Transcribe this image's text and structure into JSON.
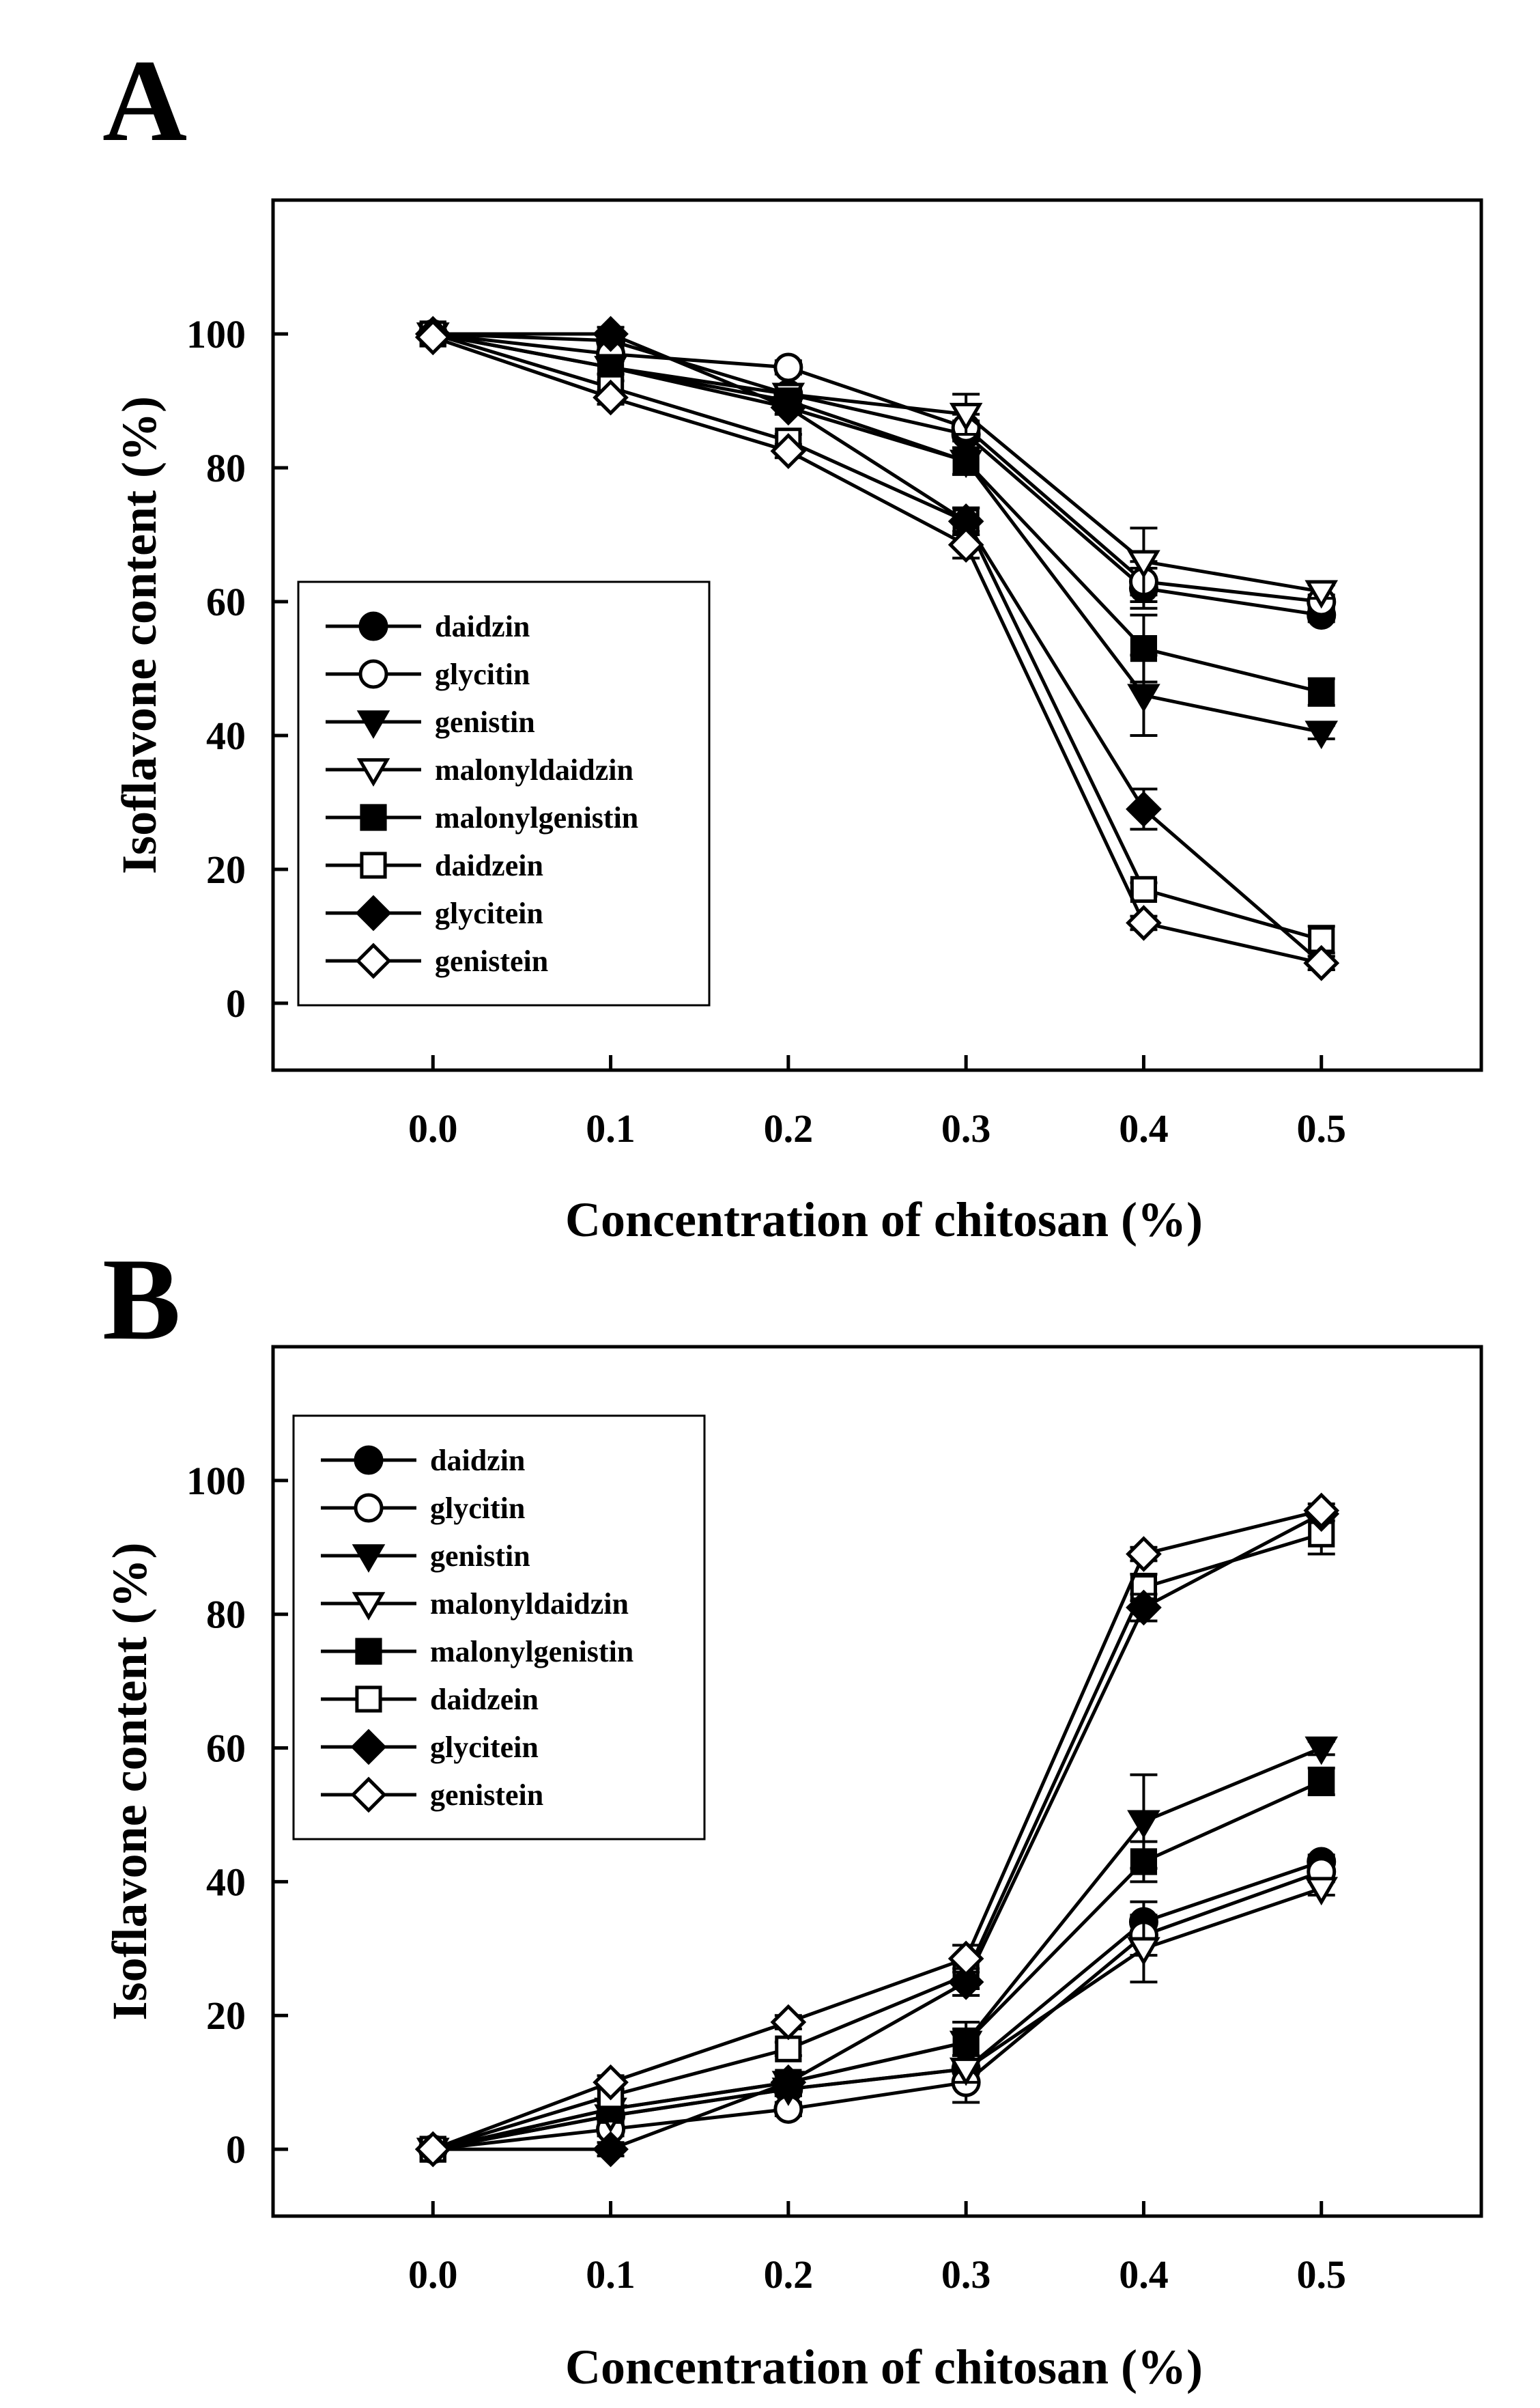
{
  "chart_data": [
    {
      "type": "line",
      "panel_label": "A",
      "xlabel": "Concentration of chitosan (%)",
      "ylabel": "Isoflavone content (%)",
      "xlim": [
        -0.09,
        0.59
      ],
      "ylim": [
        -10,
        120
      ],
      "xticks": [
        "0.0",
        "0.1",
        "0.2",
        "0.3",
        "0.4",
        "0.5"
      ],
      "yticks": [
        "0",
        "20",
        "40",
        "60",
        "80",
        "100"
      ],
      "legend_position": "center-left",
      "x": [
        0.0,
        0.1,
        0.2,
        0.3,
        0.4,
        0.5
      ],
      "series": [
        {
          "name": "daidzin",
          "marker": "circle",
          "filled": true,
          "values": [
            100,
            99,
            91,
            85,
            62,
            58
          ],
          "errors": [
            0.5,
            1,
            1,
            2,
            3,
            1
          ]
        },
        {
          "name": "glycitin",
          "marker": "circle",
          "filled": false,
          "values": [
            100,
            97,
            95,
            86,
            63,
            60
          ],
          "errors": [
            0.5,
            1,
            1,
            2,
            3,
            1
          ]
        },
        {
          "name": "genistin",
          "marker": "triangle-down",
          "filled": true,
          "values": [
            100,
            95,
            89,
            81,
            46,
            40.5
          ],
          "errors": [
            0.5,
            1,
            1,
            2,
            6,
            1
          ]
        },
        {
          "name": "malonyldaidzin",
          "marker": "triangle-down",
          "filled": false,
          "values": [
            100,
            95,
            91,
            88,
            66,
            61.5
          ],
          "errors": [
            0.5,
            1,
            1,
            3,
            5,
            1
          ]
        },
        {
          "name": "malonylgenistin",
          "marker": "square",
          "filled": true,
          "values": [
            100,
            95,
            90,
            81,
            53,
            46.5
          ],
          "errors": [
            0.5,
            1,
            1,
            2,
            5,
            2
          ]
        },
        {
          "name": "daidzein",
          "marker": "square",
          "filled": false,
          "values": [
            100,
            92,
            84,
            72,
            17,
            9.5
          ],
          "errors": [
            0.5,
            1,
            1,
            2,
            1,
            2
          ]
        },
        {
          "name": "glycitein",
          "marker": "diamond",
          "filled": true,
          "values": [
            100,
            100,
            89,
            72,
            29,
            6
          ],
          "errors": [
            0.5,
            1,
            1,
            2,
            3,
            1
          ]
        },
        {
          "name": "genistein",
          "marker": "diamond",
          "filled": false,
          "values": [
            99.5,
            90.5,
            82.5,
            68.5,
            12,
            6
          ],
          "errors": [
            0.5,
            1,
            1,
            2,
            1,
            1
          ]
        }
      ]
    },
    {
      "type": "line",
      "panel_label": "B",
      "xlabel": "Concentration of chitosan (%)",
      "ylabel": "Isoflavone content (%)",
      "xlim": [
        -0.09,
        0.59
      ],
      "ylim": [
        -10,
        120
      ],
      "xticks": [
        "0.0",
        "0.1",
        "0.2",
        "0.3",
        "0.4",
        "0.5"
      ],
      "yticks": [
        "0",
        "20",
        "40",
        "60",
        "80",
        "100"
      ],
      "legend_position": "top-left",
      "x": [
        0.0,
        0.1,
        0.2,
        0.3,
        0.4,
        0.5
      ],
      "series": [
        {
          "name": "daidzin",
          "marker": "circle",
          "filled": true,
          "values": [
            0,
            5,
            9,
            12,
            34,
            43
          ],
          "errors": [
            0.5,
            1,
            1,
            2,
            3,
            1
          ]
        },
        {
          "name": "glycitin",
          "marker": "circle",
          "filled": false,
          "values": [
            0,
            3,
            6,
            10,
            32,
            41.5
          ],
          "errors": [
            0.5,
            1,
            1,
            3,
            3,
            1
          ]
        },
        {
          "name": "genistin",
          "marker": "triangle-down",
          "filled": true,
          "values": [
            0,
            6,
            10,
            16,
            49,
            60
          ],
          "errors": [
            0.5,
            1,
            1,
            3,
            7,
            1
          ]
        },
        {
          "name": "malonyldaidzin",
          "marker": "triangle-down",
          "filled": false,
          "values": [
            0,
            5,
            9,
            12,
            30,
            39
          ],
          "errors": [
            0.5,
            1,
            1,
            2,
            5,
            1
          ]
        },
        {
          "name": "malonylgenistin",
          "marker": "square",
          "filled": true,
          "values": [
            0,
            6,
            10,
            16,
            43,
            55
          ],
          "errors": [
            0.5,
            1,
            1,
            2,
            3,
            2
          ]
        },
        {
          "name": "daidzein",
          "marker": "square",
          "filled": false,
          "values": [
            0,
            8,
            15,
            26,
            84,
            92
          ],
          "errors": [
            0.5,
            1,
            1,
            2,
            2,
            3
          ]
        },
        {
          "name": "glycitein",
          "marker": "diamond",
          "filled": true,
          "values": [
            0,
            0,
            10,
            25,
            81,
            95
          ],
          "errors": [
            0.5,
            1,
            1,
            2,
            2,
            1
          ]
        },
        {
          "name": "genistein",
          "marker": "diamond",
          "filled": false,
          "values": [
            0,
            10,
            19,
            28.5,
            89,
            95.5
          ],
          "errors": [
            0.5,
            1,
            1,
            2,
            1,
            1
          ]
        }
      ]
    }
  ]
}
